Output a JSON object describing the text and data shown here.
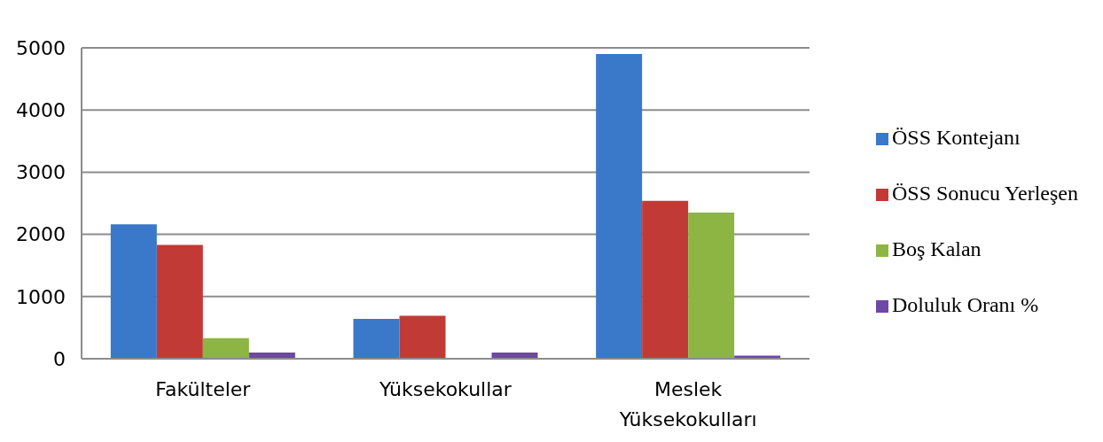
{
  "chart_data": {
    "type": "bar",
    "categories": [
      "Fakülteler",
      "Yüksekokullar",
      "Meslek Yüksekokulları"
    ],
    "series": [
      {
        "name": "ÖSS Kontejanı",
        "color": "#3a78c9",
        "values": [
          2160,
          640,
          4900
        ]
      },
      {
        "name": "ÖSS Sonucu Yerleşen",
        "color": "#c23a36",
        "values": [
          1830,
          690,
          2540
        ]
      },
      {
        "name": "Boş Kalan",
        "color": "#8cb544",
        "values": [
          330,
          0,
          2350
        ]
      },
      {
        "name": "Doluluk Oranı %",
        "color": "#6d48a6",
        "values": [
          100,
          100,
          50
        ]
      }
    ],
    "ylim": [
      0,
      5000
    ],
    "yticks": [
      0,
      1000,
      2000,
      3000,
      4000,
      5000
    ],
    "grid": "y",
    "legend": "right"
  }
}
